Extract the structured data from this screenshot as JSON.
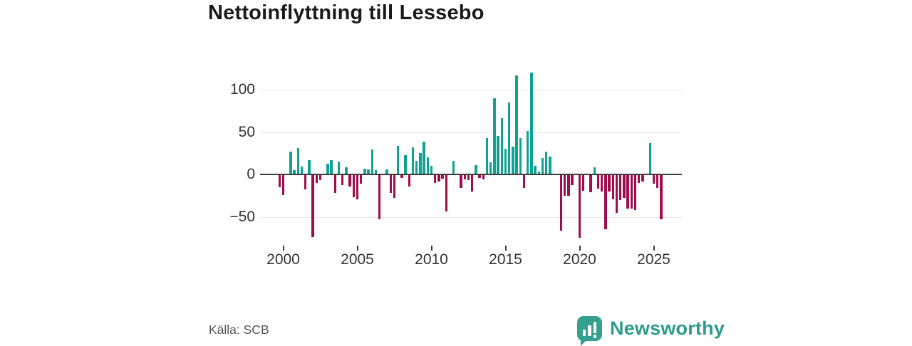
{
  "title": "Nettoinflyttning till Lessebo",
  "source": "Källa: SCB",
  "brand": {
    "name": "Newsworthy"
  },
  "colors": {
    "positive": "#0EA293",
    "negative": "#A00D4D",
    "grid": "#e8e8e8",
    "zero_line": "#3d3d3d",
    "axis_text": "#333333",
    "title_text": "#1a1a1a",
    "source_text": "#565656",
    "brand_teal": "#35A08E",
    "brand_text": "#2E9C8D"
  },
  "chart_data": {
    "type": "bar",
    "title": "Nettoinflyttning till Lessebo",
    "xlabel": "",
    "ylabel": "",
    "frequency": "quarterly",
    "start_period": "1999 Q4",
    "end_period": "2025 Q3",
    "x_tick_years": [
      "2000",
      "2005",
      "2010",
      "2015",
      "2020",
      "2025"
    ],
    "y_ticks": [
      100,
      50,
      0,
      -50
    ],
    "y_tick_labels": [
      "100",
      "50",
      "0",
      "−50"
    ],
    "ylim": [
      -85,
      135
    ],
    "grid": "horizontal",
    "legend": "none",
    "values": [
      -15,
      -24,
      0,
      27,
      5,
      31,
      9,
      -18,
      17,
      -74,
      -10,
      -7,
      0,
      13,
      17,
      -22,
      15,
      -13,
      8,
      -14,
      -27,
      -29,
      -11,
      7,
      6,
      29,
      5,
      -53,
      0,
      6,
      -22,
      -28,
      34,
      -4,
      23,
      -14,
      32,
      16,
      25,
      39,
      20,
      10,
      -10,
      -8,
      -5,
      -44,
      0,
      16,
      0,
      -16,
      -6,
      -7,
      -20,
      11,
      -4,
      -6,
      43,
      14,
      90,
      45,
      66,
      30,
      85,
      33,
      117,
      43,
      -16,
      51,
      120,
      10,
      3,
      19,
      27,
      21,
      0,
      0,
      -66,
      -25,
      -25,
      -13,
      0,
      -75,
      -19,
      0,
      -21,
      8,
      -17,
      -20,
      -65,
      -20,
      -29,
      -45,
      -30,
      -28,
      -40,
      -40,
      -42,
      -10,
      -8,
      0,
      37,
      -11,
      -16,
      -53
    ]
  }
}
